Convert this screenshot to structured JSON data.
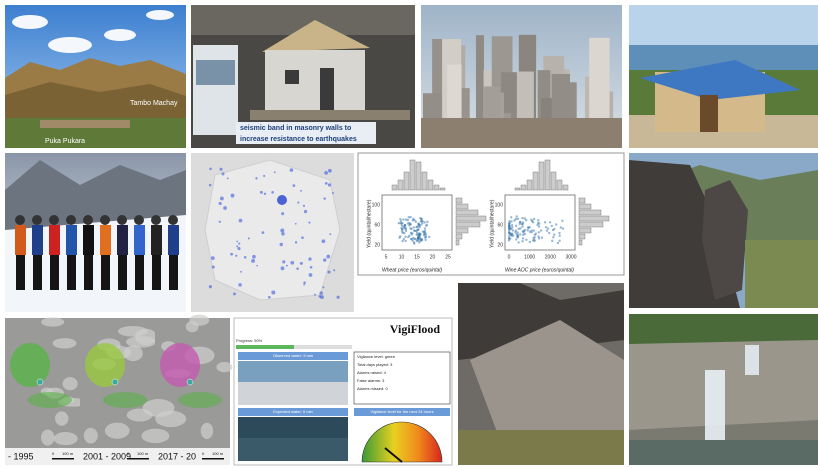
{
  "mountain_photo": {
    "labels": [
      "Tambo Machay",
      "Puka Pukara"
    ]
  },
  "house_photo": {
    "banner": [
      "seismic band in masonry walls to",
      "increase resistance to earthquakes"
    ]
  },
  "scatter_figure": {
    "left_xlabel": "Wheat price (euros/quintal)",
    "right_xlabel": "Wine AOC price (euros/quintal)",
    "ylabel": "Yield (quintal/hectare)",
    "left_xticks": [
      "5",
      "10",
      "15",
      "20",
      "25"
    ],
    "right_xticks": [
      "0",
      "1000",
      "2000",
      "3000"
    ],
    "yticks": [
      "20",
      "60",
      "100"
    ]
  },
  "glacier_maps": {
    "periods": [
      "- 1995",
      "2001 - 2009",
      "2017 - 20"
    ],
    "scale": [
      "0",
      "100 m"
    ]
  },
  "vigiflood": {
    "title": "VigiFlood",
    "progress": "Progress: 50%",
    "panels": [
      "Observed water: 9 min",
      "Expected water: 9 min"
    ],
    "stats": [
      "Vigilance level: green",
      "Total days played: 3",
      "Alarms raised: 4",
      "False alarms: 3",
      "Alarms missed: 0"
    ],
    "gauge_title": "Vigilance level for the next 24 hours"
  }
}
